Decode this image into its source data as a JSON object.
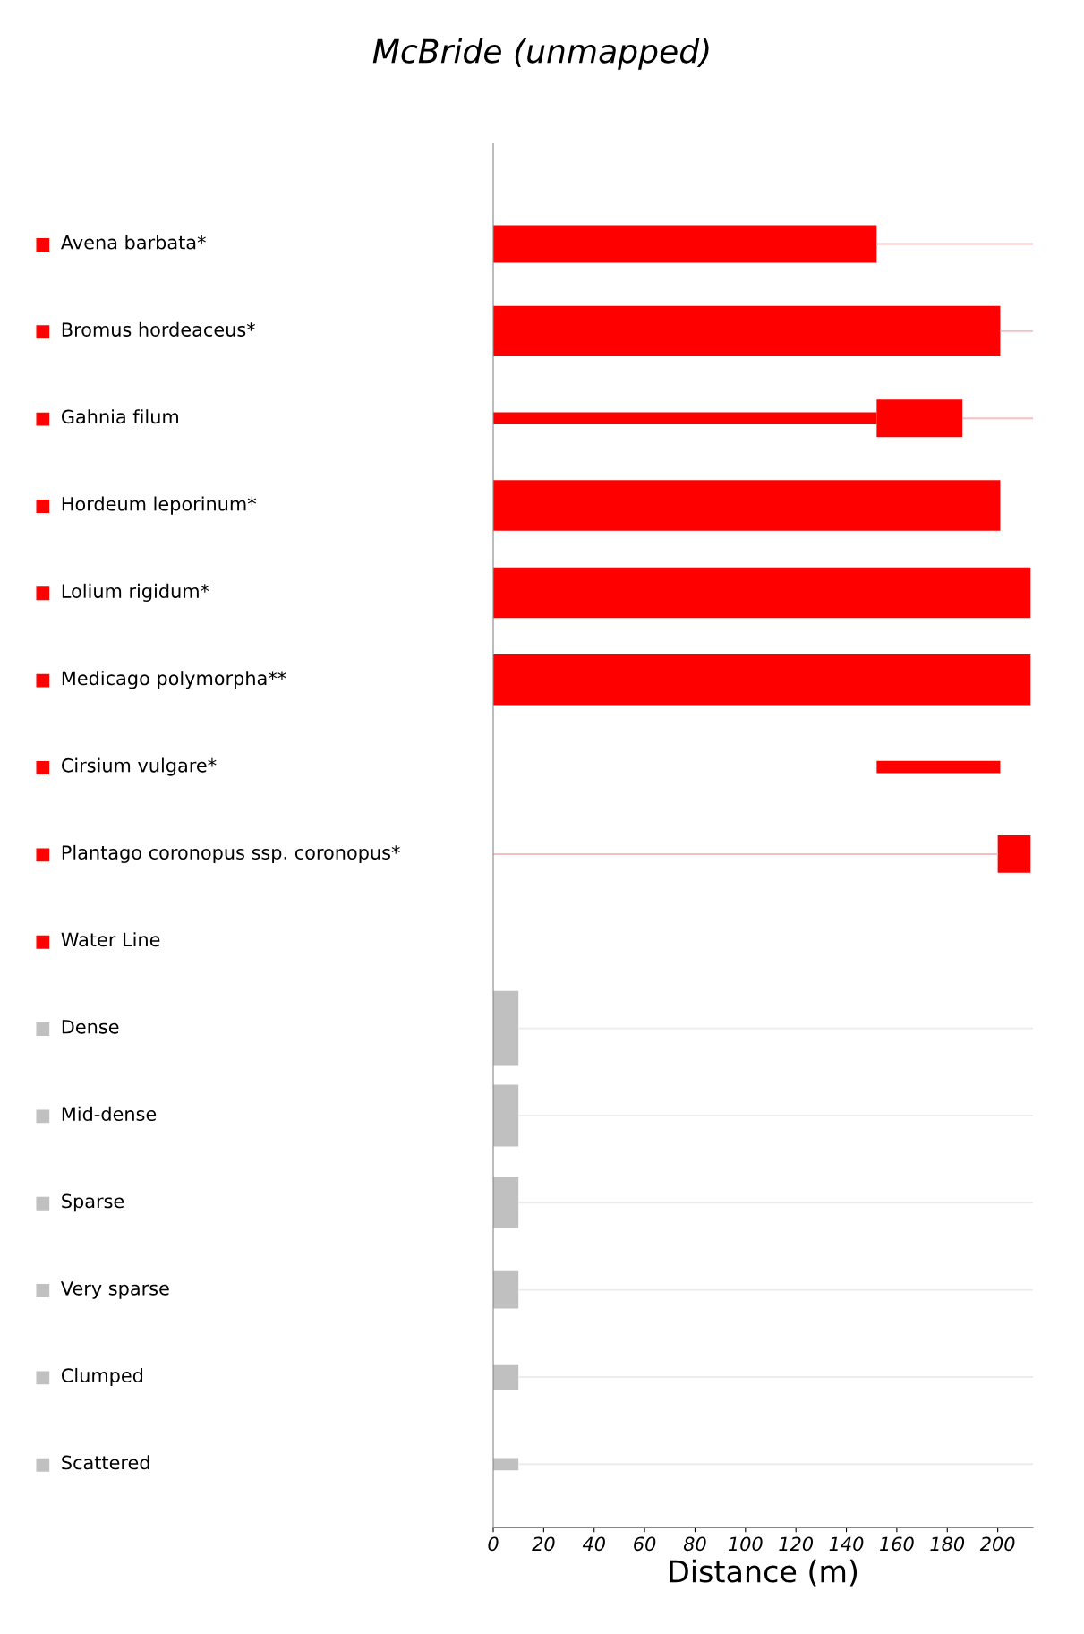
{
  "chart_data": {
    "type": "bar",
    "orientation": "horizontal",
    "title": "McBride (unmapped)",
    "xlabel": "Distance (m)",
    "categories": [
      "Avena barbata*",
      "Bromus hordeaceus*",
      "Gahnia filum",
      "Hordeum leporinum*",
      "Lolium rigidum*",
      "Medicago polymorpha**",
      "Cirsium vulgare*",
      "Plantago coronopus ssp. coronopus*",
      "Water Line",
      "Dense",
      "Mid-dense",
      "Sparse",
      "Very sparse",
      "Clumped",
      "Scattered"
    ],
    "colors": [
      "#ff0000",
      "#ff0000",
      "#ff0000",
      "#ff0000",
      "#ff0000",
      "#ff0000",
      "#ff0000",
      "#ff0000",
      "#ff0000",
      "#c0c0c0",
      "#c0c0c0",
      "#c0c0c0",
      "#c0c0c0",
      "#c0c0c0",
      "#c0c0c0"
    ],
    "series": [
      {
        "values": [
          null,
          null,
          null,
          null,
          null,
          null,
          null,
          null,
          null,
          10,
          null,
          null,
          null,
          null,
          null
        ],
        "base": [
          null,
          null,
          null,
          null,
          null,
          null,
          null,
          null,
          null,
          0,
          null,
          null,
          null,
          null,
          null
        ],
        "colors": [
          null,
          null,
          null,
          null,
          null,
          null,
          null,
          null,
          null,
          "#c0c0c0",
          null,
          null,
          null,
          null,
          null
        ]
      },
      {
        "values": [
          null,
          null,
          null,
          null,
          null,
          null,
          null,
          null,
          null,
          null,
          10,
          null,
          null,
          null,
          null
        ],
        "base": [
          null,
          null,
          null,
          null,
          null,
          null,
          null,
          null,
          null,
          null,
          0,
          null,
          null,
          null,
          null
        ],
        "colors": [
          null,
          null,
          null,
          null,
          null,
          null,
          null,
          null,
          null,
          null,
          "#c0c0c0",
          null,
          null,
          null,
          null
        ]
      },
      {
        "values": [
          null,
          201,
          null,
          201,
          213,
          213,
          null,
          null,
          null,
          null,
          null,
          10,
          null,
          null,
          null
        ],
        "base": [
          null,
          0,
          null,
          0,
          0,
          0,
          null,
          null,
          null,
          null,
          null,
          0,
          null,
          null,
          null
        ],
        "colors": [
          null,
          "#ff0000",
          null,
          "#ff0000",
          "#ff0000",
          "#ff0000",
          null,
          null,
          null,
          null,
          null,
          "#c0c0c0",
          null,
          null,
          null
        ]
      },
      {
        "values": [
          152,
          null,
          34,
          null,
          null,
          null,
          null,
          13,
          null,
          null,
          null,
          null,
          10,
          null,
          null
        ],
        "base": [
          0,
          null,
          152,
          null,
          null,
          null,
          null,
          200,
          null,
          null,
          null,
          null,
          0,
          null,
          null
        ],
        "colors": [
          "#ff0000",
          null,
          "#ff0000",
          null,
          null,
          null,
          null,
          "#ff0000",
          null,
          null,
          null,
          null,
          "#c0c0c0",
          null,
          null
        ]
      },
      {
        "values": [
          null,
          null,
          null,
          null,
          null,
          null,
          null,
          null,
          null,
          null,
          null,
          null,
          null,
          10,
          null
        ],
        "base": [
          null,
          null,
          null,
          null,
          null,
          null,
          null,
          null,
          null,
          null,
          null,
          null,
          null,
          0,
          null
        ],
        "colors": [
          null,
          null,
          null,
          null,
          null,
          null,
          null,
          null,
          null,
          null,
          null,
          null,
          null,
          "#c0c0c0",
          null
        ]
      },
      {
        "values": [
          null,
          null,
          152,
          null,
          null,
          null,
          49,
          null,
          null,
          null,
          null,
          null,
          null,
          null,
          10
        ],
        "base": [
          null,
          null,
          0,
          null,
          null,
          null,
          152,
          null,
          null,
          null,
          null,
          null,
          null,
          null,
          0
        ],
        "colors": [
          null,
          null,
          "#ff0000",
          null,
          null,
          null,
          "#ff0000",
          null,
          null,
          null,
          null,
          null,
          null,
          null,
          "#c0c0c0"
        ]
      },
      {
        "values": [
          62,
          13,
          28,
          null,
          null,
          null,
          null,
          200,
          null,
          204,
          204,
          204,
          204,
          204,
          204
        ],
        "base": [
          152,
          201,
          186,
          null,
          null,
          null,
          null,
          0,
          null,
          10,
          10,
          10,
          10,
          10,
          10
        ],
        "colors": [
          "#f6c0c0",
          "#f6c0c0",
          "#f6c0c0",
          null,
          null,
          null,
          null,
          "#f6c0c0",
          null,
          "#ececec",
          "#ececec",
          "#ececec",
          "#ececec",
          "#ececec",
          "#ececec"
        ]
      }
    ],
    "xlim": [
      0,
      214
    ],
    "xticks": [
      0,
      20,
      40,
      60,
      80,
      100,
      120,
      140,
      160,
      180,
      200
    ],
    "grid": false
  }
}
